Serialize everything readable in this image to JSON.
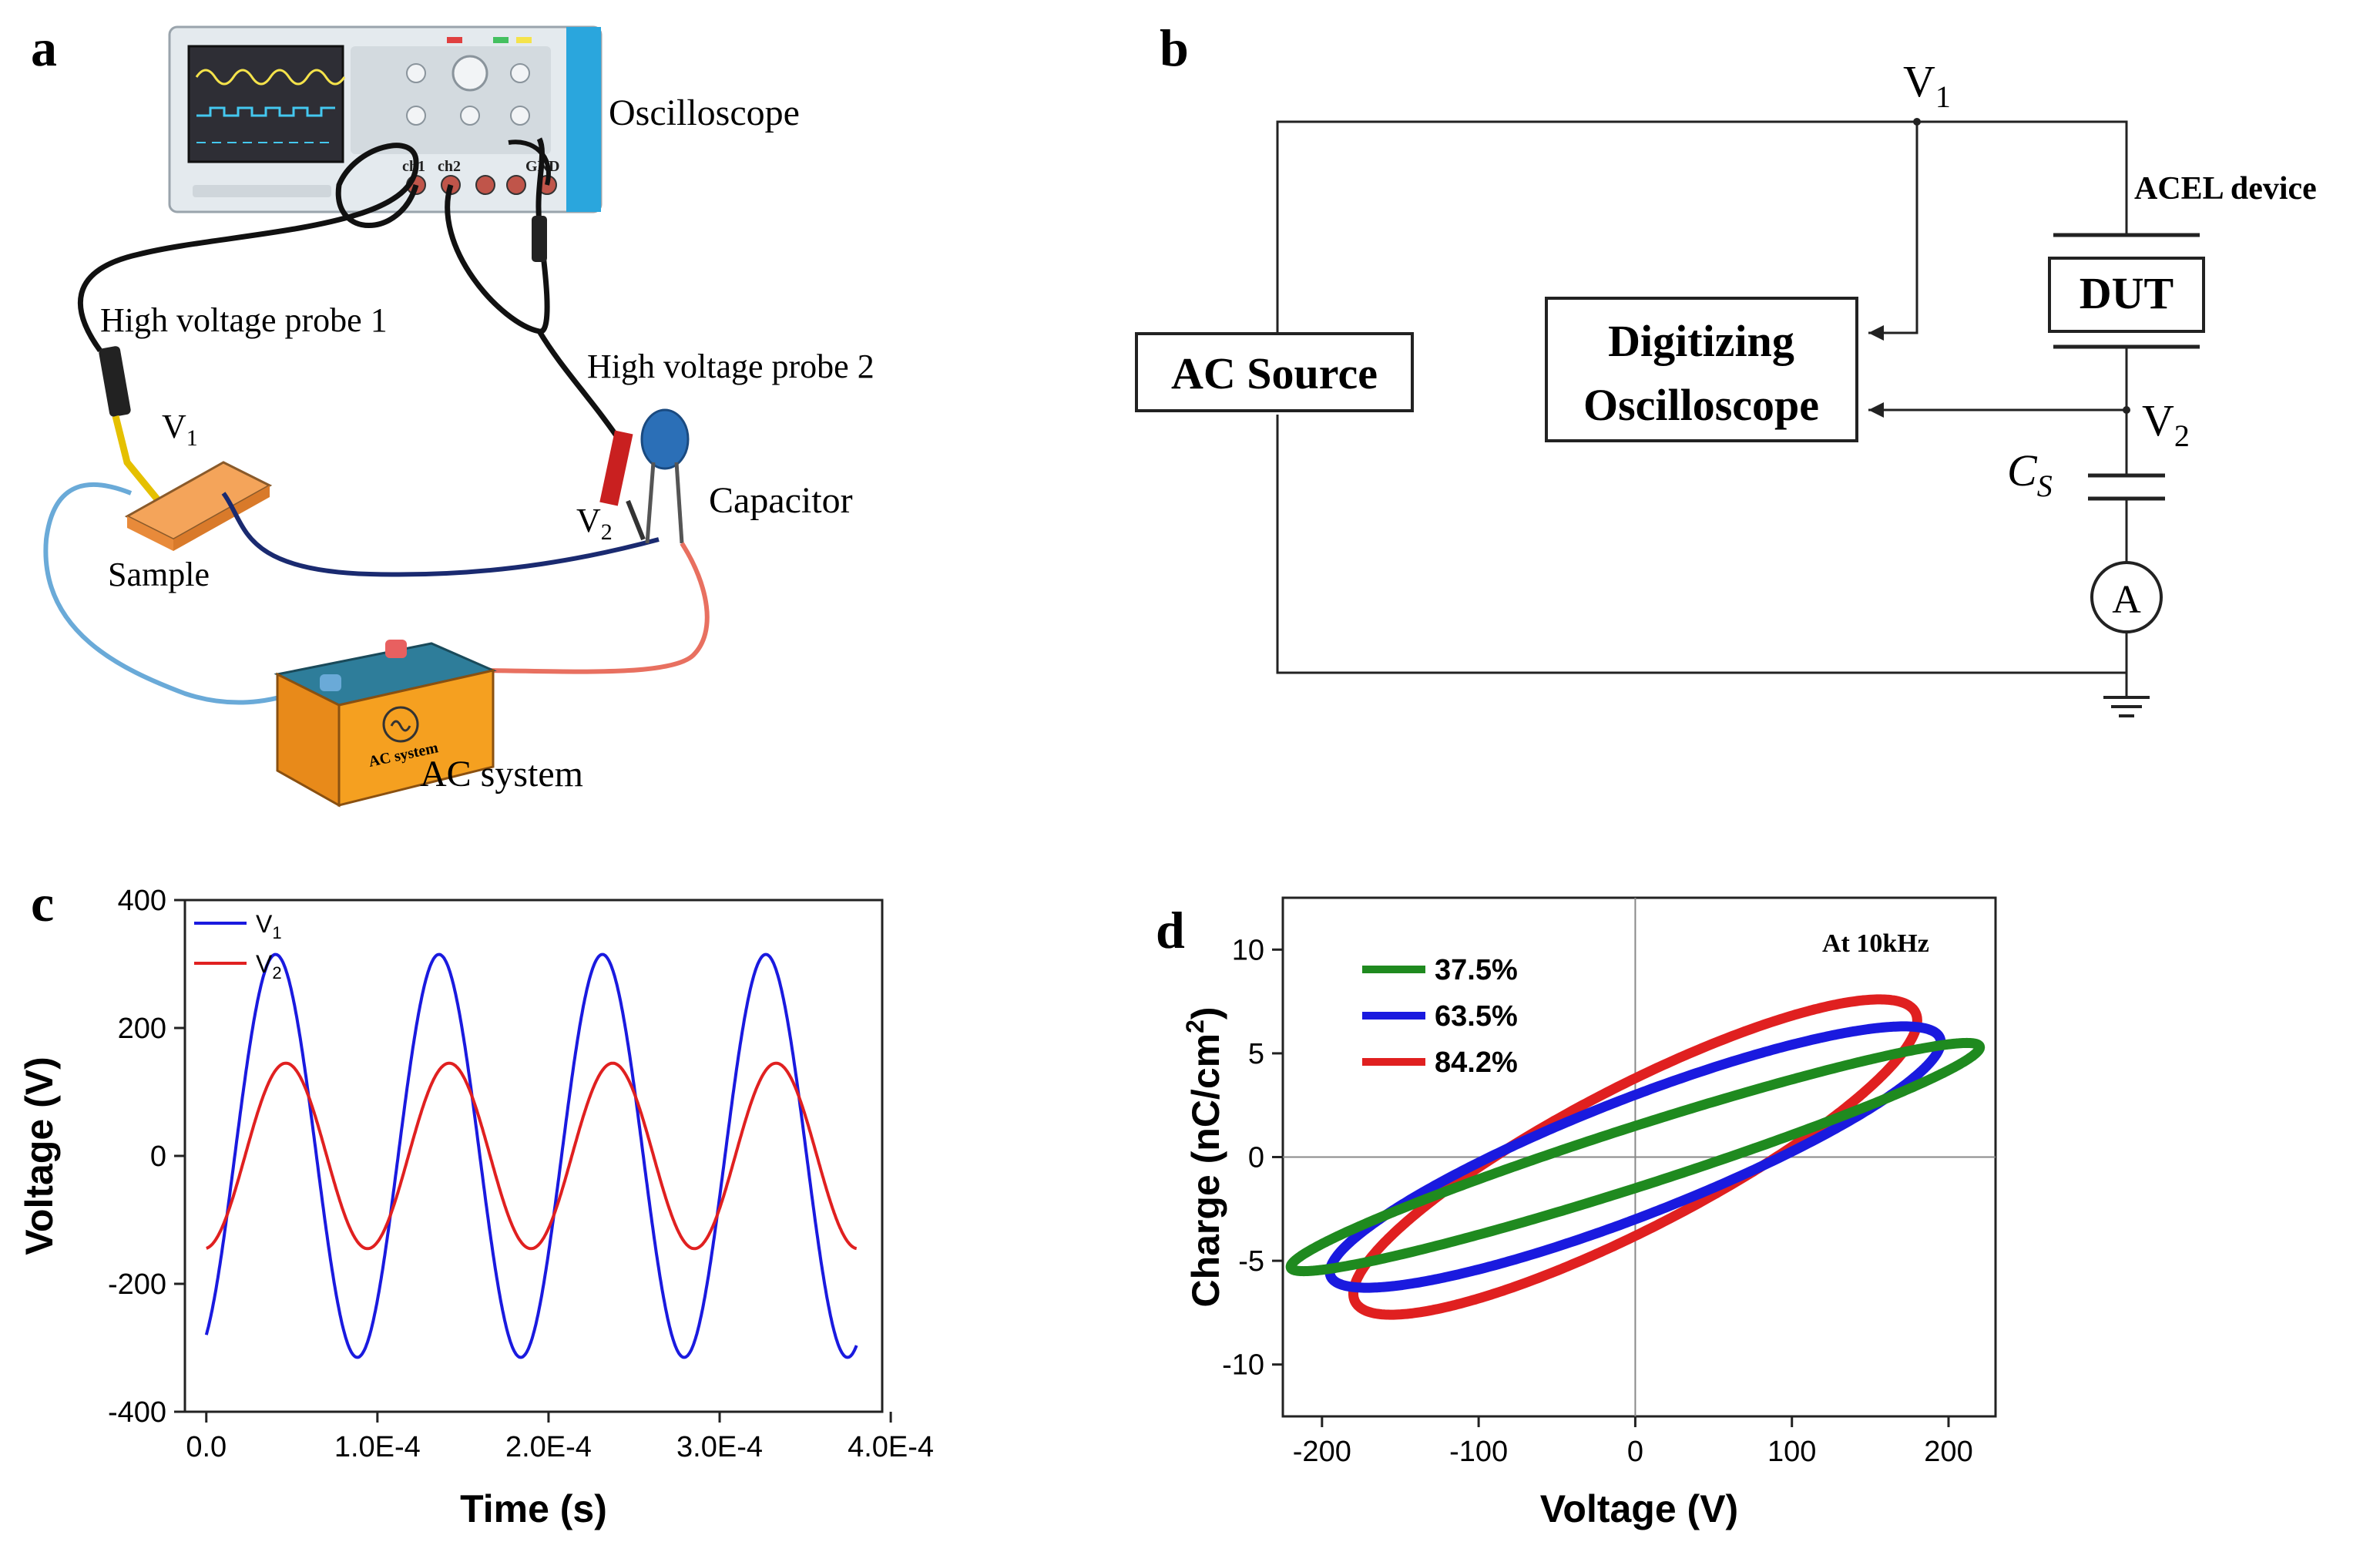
{
  "panels": {
    "a": {
      "letter": "a",
      "labels": {
        "oscilloscope": "Oscilloscope",
        "probe1": "High voltage probe 1",
        "probe2": "High voltage probe 2",
        "capacitor": "Capacitor",
        "sample": "Sample",
        "ac_system": "AC system",
        "ac_system_box": "AC system",
        "v1_main": "V",
        "v1_sub": "1",
        "v2_main": "V",
        "v2_sub": "2",
        "ch1": "ch1",
        "ch2": "ch2",
        "gnd": "GND"
      }
    },
    "b": {
      "letter": "b",
      "labels": {
        "v1_main": "V",
        "v1_sub": "1",
        "v2_main": "V",
        "v2_sub": "2",
        "acel_device": "ACEL device",
        "dut": "DUT",
        "ac_source": "AC Source",
        "digitizing": "Digitizing",
        "oscilloscope": "Oscilloscope",
        "cs_main": "C",
        "cs_sub": "S",
        "ammeter": "A"
      }
    },
    "c": {
      "letter": "c"
    },
    "d": {
      "letter": "d"
    }
  },
  "chart_data": [
    {
      "panel": "c",
      "type": "line",
      "title": "",
      "xlabel": "Time (s)",
      "ylabel": "Voltage (V)",
      "xlim": [
        -1.25e-05,
        0.000395
      ],
      "ylim": [
        -400,
        400
      ],
      "xticks": [
        0,
        0.0001,
        0.0002,
        0.0003,
        0.0004
      ],
      "xtick_labels": [
        "0.0",
        "1.0E-4",
        "2.0E-4",
        "3.0E-4",
        "4.0E-4"
      ],
      "yticks": [
        -400,
        -200,
        0,
        200,
        400
      ],
      "ytick_labels": [
        "-400",
        "-200",
        "0",
        "200",
        "400"
      ],
      "legend_position": "top-left",
      "series": [
        {
          "name_main": "V",
          "name_sub": "1",
          "color": "#1a1adf",
          "amplitude": 315,
          "period": 9.55e-05,
          "peak_time": 4.05e-05,
          "x_start": 0,
          "x_end": 0.00038
        },
        {
          "name_main": "V",
          "name_sub": "2",
          "color": "#e02020",
          "amplitude": 145,
          "period": 9.55e-05,
          "peak_time": 4.65e-05,
          "x_start": 0,
          "x_end": 0.00038
        }
      ]
    },
    {
      "panel": "d",
      "type": "line",
      "title": "",
      "annotation": "At 10kHz",
      "xlabel": "Voltage (V)",
      "ylabel_main": "Charge (nC/cm",
      "ylabel_sup": "2",
      "ylabel_end": ")",
      "xlim": [
        -225,
        230
      ],
      "ylim": [
        -12.5,
        12.5
      ],
      "xticks": [
        -200,
        -100,
        0,
        100,
        200
      ],
      "xtick_labels": [
        "-200",
        "-100",
        "0",
        "100",
        "200"
      ],
      "yticks": [
        -10,
        -5,
        0,
        5,
        10
      ],
      "ytick_labels": [
        "-10",
        "-5",
        "0",
        "5",
        "10"
      ],
      "legend_position": "top-left",
      "series": [
        {
          "name": "37.5%",
          "color": "#1f8a1f",
          "vmax": 220,
          "qmax": 5.5,
          "q_at_zero_upper": 1.5
        },
        {
          "name": "63.5%",
          "color": "#1a1adf",
          "vmax": 195,
          "qmax": 6.3,
          "q_at_zero_upper": 3.0
        },
        {
          "name": "84.2%",
          "color": "#e02020",
          "vmax": 180,
          "qmax": 7.6,
          "q_at_zero_upper": 3.8
        }
      ]
    }
  ]
}
